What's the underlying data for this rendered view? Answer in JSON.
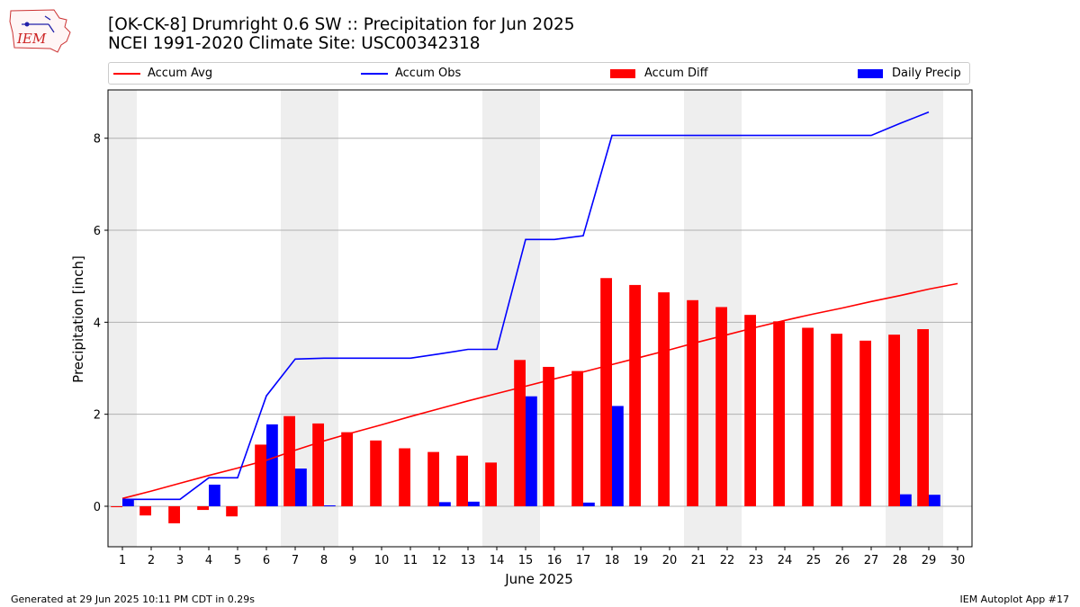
{
  "header": {
    "logo_text": "IEM",
    "title_line1": "[OK-CK-8] Drumright 0.6 SW :: Precipitation for Jun 2025",
    "title_line2": "NCEI 1991-2020 Climate Site: USC00342318"
  },
  "legend": {
    "accum_avg": "Accum Avg",
    "accum_obs": "Accum Obs",
    "accum_diff": "Accum Diff",
    "daily_precip": "Daily Precip"
  },
  "colors": {
    "avg": "#ff0000",
    "obs": "#0000ff",
    "diff": "#ff0000",
    "daily": "#0000ff",
    "weekend_shade": "#eeeeee",
    "grid": "#b0b0b0"
  },
  "footer": {
    "generated": "Generated at 29 Jun 2025 10:11 PM CDT in 0.29s",
    "app": "IEM Autoplot App #17"
  },
  "chart_data": {
    "type": "bar",
    "xlabel": "June 2025",
    "ylabel": "Precipitation [inch]",
    "xlim": [
      0.5,
      30.5
    ],
    "ylim": [
      -0.88,
      9.05
    ],
    "yticks": [
      0,
      2,
      4,
      6,
      8
    ],
    "grid": "horizontal",
    "legend_position": "top",
    "x": [
      1,
      2,
      3,
      4,
      5,
      6,
      7,
      8,
      9,
      10,
      11,
      12,
      13,
      14,
      15,
      16,
      17,
      18,
      19,
      20,
      21,
      22,
      23,
      24,
      25,
      26,
      27,
      28,
      29,
      30
    ],
    "shaded_days": [
      1,
      7,
      8,
      14,
      15,
      21,
      22,
      28,
      29
    ],
    "series": [
      {
        "name": "Accum Avg",
        "kind": "line",
        "x": [
          1,
          2,
          3,
          4,
          5,
          6,
          7,
          8,
          9,
          10,
          11,
          12,
          13,
          14,
          15,
          16,
          17,
          18,
          19,
          20,
          21,
          22,
          23,
          24,
          25,
          26,
          27,
          28,
          29,
          30
        ],
        "values": [
          0.17,
          0.33,
          0.5,
          0.67,
          0.83,
          1.0,
          1.22,
          1.42,
          1.6,
          1.77,
          1.95,
          2.12,
          2.29,
          2.45,
          2.61,
          2.77,
          2.92,
          3.08,
          3.24,
          3.4,
          3.57,
          3.73,
          3.89,
          4.04,
          4.18,
          4.31,
          4.45,
          4.58,
          4.72,
          4.84
        ]
      },
      {
        "name": "Accum Obs",
        "kind": "line",
        "x": [
          1,
          2,
          3,
          4,
          5,
          6,
          7,
          8,
          9,
          10,
          11,
          12,
          13,
          14,
          15,
          16,
          17,
          18,
          19,
          20,
          21,
          22,
          23,
          24,
          25,
          26,
          27,
          28,
          29
        ],
        "values": [
          0.15,
          0.15,
          0.15,
          0.62,
          0.62,
          2.4,
          3.2,
          3.22,
          3.22,
          3.22,
          3.22,
          3.31,
          3.41,
          3.41,
          5.8,
          5.8,
          5.88,
          8.06,
          8.06,
          8.06,
          8.06,
          8.06,
          8.06,
          8.06,
          8.06,
          8.06,
          8.06,
          8.32,
          8.57
        ]
      },
      {
        "name": "Accum Diff",
        "kind": "bar",
        "x": [
          1,
          2,
          3,
          4,
          5,
          6,
          7,
          8,
          9,
          10,
          11,
          12,
          13,
          14,
          15,
          16,
          17,
          18,
          19,
          20,
          21,
          22,
          23,
          24,
          25,
          26,
          27,
          28,
          29
        ],
        "values": [
          -0.02,
          -0.2,
          -0.37,
          -0.08,
          -0.22,
          1.34,
          1.96,
          1.8,
          1.61,
          1.43,
          1.26,
          1.18,
          1.1,
          0.95,
          3.18,
          3.03,
          2.94,
          4.96,
          4.81,
          4.65,
          4.48,
          4.33,
          4.16,
          4.02,
          3.88,
          3.75,
          3.6,
          3.73,
          3.85
        ]
      },
      {
        "name": "Daily Precip",
        "kind": "bar",
        "x": [
          1,
          2,
          3,
          4,
          5,
          6,
          7,
          8,
          9,
          10,
          11,
          12,
          13,
          14,
          15,
          16,
          17,
          18,
          19,
          20,
          21,
          22,
          23,
          24,
          25,
          26,
          27,
          28,
          29
        ],
        "values": [
          0.15,
          0,
          0,
          0.47,
          0,
          1.78,
          0.82,
          0.02,
          0,
          0,
          0,
          0.09,
          0.1,
          0,
          2.39,
          0,
          0.08,
          2.18,
          0,
          0,
          0,
          0,
          0,
          0,
          0,
          0,
          0,
          0.26,
          0.25
        ]
      }
    ]
  }
}
